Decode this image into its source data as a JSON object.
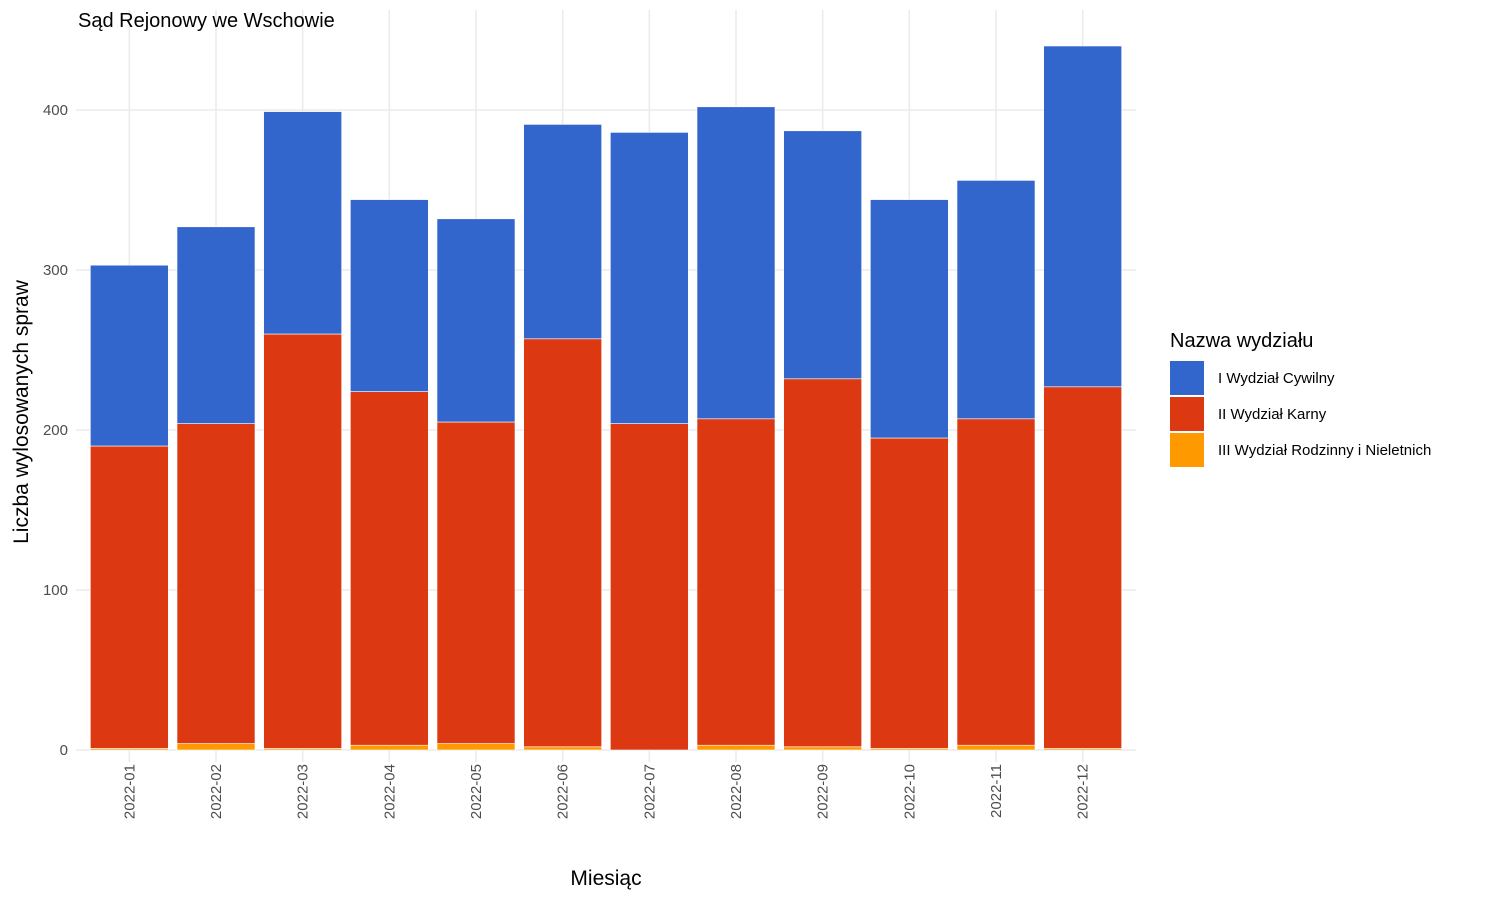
{
  "chart_data": {
    "type": "bar",
    "stacked": true,
    "title": "Sąd Rejonowy we Wschowie",
    "xlabel": "Miesiąc",
    "ylabel": "Liczba wylosowanych spraw",
    "ylim": [
      0,
      440
    ],
    "yticks": [
      0,
      100,
      200,
      300,
      400
    ],
    "grid": true,
    "legend_position": "right",
    "legend_title": "Nazwa wydziału",
    "categories": [
      "2022-01",
      "2022-02",
      "2022-03",
      "2022-04",
      "2022-05",
      "2022-06",
      "2022-07",
      "2022-08",
      "2022-09",
      "2022-10",
      "2022-11",
      "2022-12"
    ],
    "series": [
      {
        "name": "III Wydział Rodzinny i Nieletnich",
        "color": "#FF9900",
        "values": [
          1,
          4,
          1,
          3,
          4,
          2,
          0,
          3,
          2,
          1,
          3,
          1
        ]
      },
      {
        "name": "II Wydział Karny",
        "color": "#DC3912",
        "values": [
          189,
          200,
          259,
          221,
          201,
          255,
          204,
          204,
          230,
          194,
          204,
          226
        ]
      },
      {
        "name": "I Wydział Cywilny",
        "color": "#3366CC",
        "values": [
          113,
          123,
          139,
          120,
          127,
          134,
          182,
          195,
          155,
          149,
          149,
          213
        ]
      }
    ],
    "legend_order": [
      2,
      1,
      0
    ]
  }
}
